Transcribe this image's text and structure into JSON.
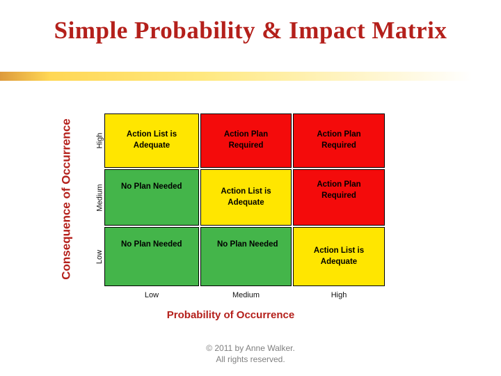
{
  "slide": {
    "title": "Simple Probability & Impact Matrix",
    "footer_line1": "© 2011 by Anne Walker.",
    "footer_line2": "All rights reserved."
  },
  "theme": {
    "accent_red": "#b4201b",
    "bar_gradient_start": "#dd9a3c",
    "bar_gradient_mid": "#ffe87e",
    "cell_yellow": "#ffe600",
    "cell_red": "#f40b0b",
    "cell_green": "#44b54a"
  },
  "matrix": {
    "y_axis_label": "Consequence of Occurrence",
    "x_axis_label": "Probability of Occurrence",
    "row_labels": [
      "High",
      "Medium",
      "Low"
    ],
    "col_labels": [
      "Low",
      "Medium",
      "High"
    ],
    "cells": [
      {
        "row": "High",
        "col": "Low",
        "label": "Action List is\nAdequate",
        "color": "#ffe600",
        "status": "yellow"
      },
      {
        "row": "High",
        "col": "Medium",
        "label": "Action Plan\nRequired",
        "color": "#f40b0b",
        "status": "red"
      },
      {
        "row": "High",
        "col": "High",
        "label": "Action Plan\nRequired",
        "color": "#f40b0b",
        "status": "red"
      },
      {
        "row": "Medium",
        "col": "Low",
        "label": "No Plan Needed",
        "color": "#44b54a",
        "status": "green"
      },
      {
        "row": "Medium",
        "col": "Medium",
        "label": "Action List is\nAdequate",
        "color": "#ffe600",
        "status": "yellow"
      },
      {
        "row": "Medium",
        "col": "High",
        "label": "Action Plan\nRequired",
        "color": "#f40b0b",
        "status": "red"
      },
      {
        "row": "Low",
        "col": "Low",
        "label": "No Plan Needed",
        "color": "#44b54a",
        "status": "green"
      },
      {
        "row": "Low",
        "col": "Medium",
        "label": "No Plan Needed",
        "color": "#44b54a",
        "status": "green"
      },
      {
        "row": "Low",
        "col": "High",
        "label": "Action List is\nAdequate",
        "color": "#ffe600",
        "status": "yellow"
      }
    ]
  }
}
